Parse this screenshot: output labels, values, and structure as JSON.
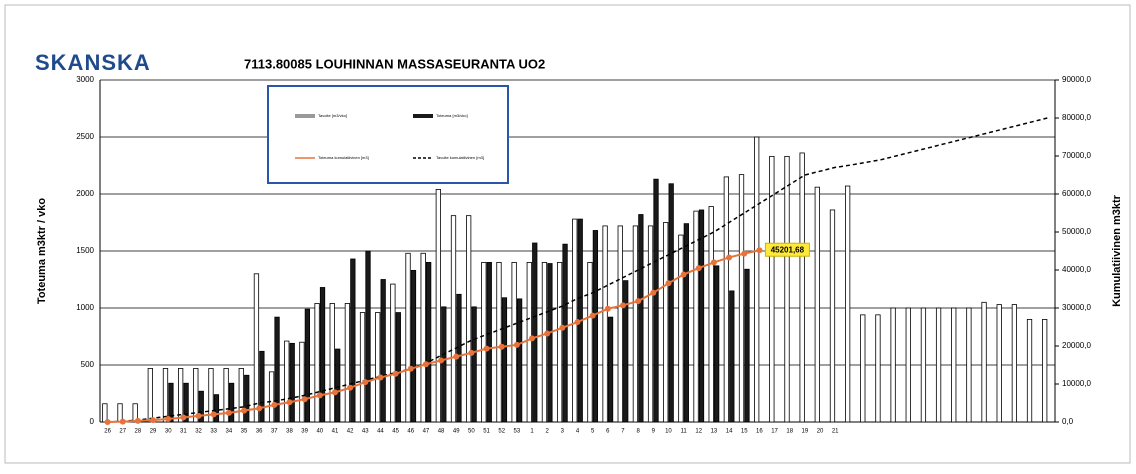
{
  "logo": "SKANSKA",
  "chart_data": {
    "type": "bar",
    "title": "7113.80085 LOUHINNAN MASSASEURANTA UO2",
    "ylabel": "Toteuma m3ktr / vko",
    "y2label": "Kumulatiivinen m3ktr",
    "categories": [
      "26",
      "27",
      "28",
      "29",
      "30",
      "31",
      "32",
      "33",
      "34",
      "35",
      "36",
      "37",
      "38",
      "39",
      "40",
      "41",
      "42",
      "43",
      "44",
      "45",
      "46",
      "47",
      "48",
      "49",
      "50",
      "51",
      "52",
      "53",
      "1",
      "2",
      "3",
      "4",
      "5",
      "6",
      "7",
      "8",
      "9",
      "10",
      "11",
      "12",
      "13",
      "14",
      "15",
      "16",
      "17",
      "18",
      "19",
      "20",
      "21",
      null,
      null,
      null,
      null,
      null,
      null,
      null,
      null,
      null,
      null,
      null,
      null,
      null,
      null
    ],
    "ylim": [
      0,
      3000
    ],
    "yticks": [
      0,
      500,
      1000,
      1500,
      2000,
      2500,
      3000
    ],
    "y2lim": [
      0,
      90000
    ],
    "y2ticks": [
      {
        "value": 0,
        "label": "0,0"
      },
      {
        "value": 10000,
        "label": "10000,0"
      },
      {
        "value": 20000,
        "label": "20000,0"
      },
      {
        "value": 30000,
        "label": "30000,0"
      },
      {
        "value": 40000,
        "label": "40000,0"
      },
      {
        "value": 50000,
        "label": "50000,0"
      },
      {
        "value": 60000,
        "label": "60000,0"
      },
      {
        "value": 70000,
        "label": "70000,0"
      },
      {
        "value": 80000,
        "label": "80000,0"
      },
      {
        "value": 90000,
        "label": "90000,0"
      }
    ],
    "grid": true,
    "series": [
      {
        "name": "Tavoite [m3/vko]",
        "type": "bar",
        "color": "#ffffff",
        "values": [
          160,
          160,
          160,
          470,
          470,
          470,
          470,
          470,
          470,
          470,
          1300,
          440,
          710,
          700,
          1040,
          1040,
          1040,
          960,
          960,
          1210,
          1480,
          1480,
          2040,
          1810,
          1810,
          1400,
          1400,
          1400,
          1400,
          1400,
          1400,
          1780,
          1400,
          1720,
          1720,
          1720,
          1720,
          1750,
          1640,
          1850,
          1890,
          2150,
          2170,
          2500,
          2330,
          2330,
          2360,
          2060,
          1860,
          2070,
          940,
          940,
          1000,
          1000,
          1000,
          1000,
          1000,
          1000,
          1050,
          1030,
          1030,
          900,
          900
        ]
      },
      {
        "name": "Toteuma [m3/vko]",
        "type": "bar",
        "color": "#1a1a1a",
        "values": [
          null,
          null,
          null,
          null,
          340,
          340,
          270,
          240,
          340,
          410,
          620,
          920,
          690,
          990,
          1180,
          640,
          1430,
          1500,
          1250,
          960,
          1330,
          1400,
          1010,
          1120,
          1010,
          1400,
          1090,
          1080,
          1570,
          1390,
          1560,
          1780,
          1680,
          920,
          1240,
          1820,
          2130,
          2090,
          1740,
          1860,
          1370,
          1150,
          1340,
          null,
          null,
          null,
          null,
          null,
          null,
          null,
          null,
          null,
          null,
          null,
          null,
          null,
          null,
          null,
          null,
          null,
          null,
          null,
          null
        ]
      },
      {
        "name": "Toteuma kumulatiivinen [m3]",
        "type": "line",
        "axis": "y2",
        "color": "#e8733a",
        "values": [
          0,
          100,
          300,
          500,
          800,
          1200,
          1600,
          2000,
          2400,
          3000,
          3600,
          4500,
          5200,
          6000,
          7000,
          7800,
          9000,
          10500,
          11700,
          12700,
          14000,
          15200,
          16200,
          17200,
          18200,
          19300,
          19800,
          20300,
          22000,
          23300,
          24800,
          26300,
          28000,
          29800,
          30700,
          31800,
          34000,
          36500,
          38800,
          40500,
          42000,
          43300,
          44300,
          45201.68,
          null,
          null,
          null,
          null,
          null,
          null,
          null,
          null,
          null,
          null,
          null,
          null,
          null,
          null,
          null,
          null,
          null,
          null,
          null
        ],
        "value_labels": [
          null,
          null,
          null,
          null,
          null,
          null,
          null,
          null,
          null,
          null,
          null,
          null,
          null,
          null,
          null,
          null,
          null,
          null,
          null,
          null,
          null,
          null,
          null,
          null,
          null,
          null,
          null,
          null,
          null,
          null,
          null,
          null,
          null,
          null,
          null,
          null,
          null,
          null,
          null,
          null,
          null,
          null,
          null,
          "45201,68",
          null,
          null,
          null,
          null,
          null,
          null,
          null,
          null,
          null,
          null,
          null,
          null,
          null,
          null,
          null,
          null,
          null,
          null,
          null
        ]
      },
      {
        "name": "Tavoite kumulatiivinen [m3]",
        "type": "dashed",
        "axis": "y2",
        "color": "#000000",
        "values": [
          0,
          200,
          500,
          1000,
          1500,
          2000,
          2500,
          3000,
          3500,
          4000,
          5000,
          5500,
          6200,
          7000,
          8000,
          9000,
          10000,
          11000,
          12000,
          13000,
          14000,
          15500,
          17500,
          19500,
          21500,
          23000,
          24500,
          26000,
          27500,
          29000,
          30500,
          32500,
          34000,
          36000,
          38000,
          40000,
          42000,
          44000,
          46000,
          48000,
          50000,
          52500,
          55000,
          57500,
          60000,
          62500,
          65000,
          66000,
          67000,
          67600,
          68300,
          69000,
          70000,
          71000,
          72000,
          73000,
          74000,
          75000,
          76000,
          77000,
          78000,
          79000,
          80000
        ]
      }
    ]
  }
}
